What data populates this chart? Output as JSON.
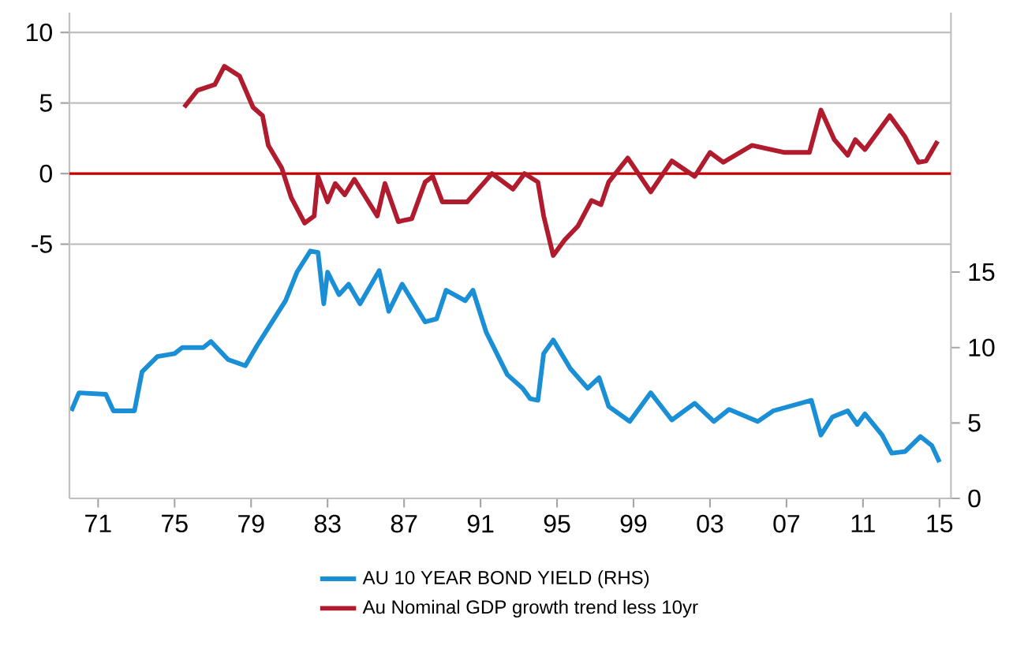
{
  "chart_data": {
    "type": "line",
    "xlim": [
      1969.5,
      2015.6
    ],
    "ylim": [
      -23,
      11.4
    ],
    "y2lim": [
      0,
      32.2
    ],
    "xticks": [
      {
        "value": 1971,
        "label": "71"
      },
      {
        "value": 1975,
        "label": "75"
      },
      {
        "value": 1979,
        "label": "79"
      },
      {
        "value": 1983,
        "label": "83"
      },
      {
        "value": 1987,
        "label": "87"
      },
      {
        "value": 1991,
        "label": "91"
      },
      {
        "value": 1995,
        "label": "95"
      },
      {
        "value": 1999,
        "label": "99"
      },
      {
        "value": 2003,
        "label": "03"
      },
      {
        "value": 2007,
        "label": "07"
      },
      {
        "value": 2011,
        "label": "11"
      },
      {
        "value": 2015,
        "label": "15"
      }
    ],
    "yticks": [
      -5,
      0,
      5,
      10
    ],
    "y2ticks": [
      0,
      5,
      10,
      15
    ],
    "grid": "y",
    "legend": "bottom",
    "marker": "none",
    "line_style": "solid",
    "ref_lines": [
      {
        "axis": "y",
        "value": 0,
        "color": "#c00000"
      }
    ],
    "series": [
      {
        "name": "AU 10 YEAR BOND YIELD (RHS)",
        "color": "#1a8fd6",
        "axis": "y2",
        "x": [
          1969.6,
          1970.0,
          1971.4,
          1971.8,
          1972.9,
          1973.3,
          1974.1,
          1975.0,
          1975.4,
          1976.5,
          1976.9,
          1977.8,
          1978.7,
          1979.3,
          1980.1,
          1980.8,
          1981.4,
          1982.1,
          1982.5,
          1982.8,
          1983.0,
          1983.6,
          1984.1,
          1984.7,
          1985.7,
          1986.2,
          1986.9,
          1988.1,
          1988.7,
          1989.2,
          1990.2,
          1990.6,
          1991.3,
          1992.4,
          1993.2,
          1993.6,
          1994.0,
          1994.3,
          1994.8,
          1995.7,
          1996.6,
          1997.2,
          1997.7,
          1998.8,
          1999.9,
          2001.0,
          2002.2,
          2003.2,
          2004.0,
          2005.5,
          2006.3,
          2008.3,
          2008.8,
          2009.4,
          2010.2,
          2010.7,
          2011.1,
          2012.0,
          2012.5,
          2013.2,
          2014.0,
          2014.6,
          2015.0
        ],
        "values": [
          5.8,
          7.0,
          6.9,
          5.8,
          5.8,
          8.4,
          9.4,
          9.6,
          10.0,
          10.0,
          10.4,
          9.2,
          8.8,
          10.1,
          11.7,
          13.1,
          15.0,
          16.4,
          16.3,
          12.9,
          15.0,
          13.5,
          14.2,
          12.9,
          15.1,
          12.4,
          14.2,
          11.7,
          11.9,
          13.8,
          13.1,
          13.8,
          11.0,
          8.2,
          7.3,
          6.6,
          6.5,
          9.6,
          10.5,
          8.6,
          7.3,
          8.0,
          6.1,
          5.1,
          7.0,
          5.2,
          6.3,
          5.1,
          5.9,
          5.1,
          5.8,
          6.5,
          4.2,
          5.4,
          5.8,
          4.9,
          5.6,
          4.2,
          3.0,
          3.1,
          4.1,
          3.5,
          2.4
        ]
      },
      {
        "name": "Au Nominal GDP growth trend less 10yr",
        "color": "#b01c2e",
        "x": [
          1975.5,
          1976.2,
          1977.1,
          1977.6,
          1978.4,
          1979.1,
          1979.6,
          1979.9,
          1980.6,
          1981.1,
          1981.8,
          1982.3,
          1982.5,
          1983.0,
          1983.4,
          1983.9,
          1984.4,
          1985.6,
          1986.0,
          1986.7,
          1987.4,
          1988.1,
          1988.5,
          1989.0,
          1990.3,
          1991.6,
          1992.7,
          1993.3,
          1994.0,
          1994.3,
          1994.8,
          1995.4,
          1996.1,
          1996.8,
          1997.3,
          1997.7,
          1998.7,
          1999.9,
          2001.0,
          2002.2,
          2003.0,
          2003.7,
          2005.2,
          2006.9,
          2008.2,
          2008.8,
          2009.5,
          2010.2,
          2010.6,
          2011.1,
          2012.4,
          2013.2,
          2013.9,
          2014.3,
          2014.9
        ],
        "values": [
          4.7,
          5.9,
          6.3,
          7.6,
          6.9,
          4.7,
          4.1,
          2.0,
          0.4,
          -1.7,
          -3.5,
          -3.0,
          -0.2,
          -2.0,
          -0.7,
          -1.5,
          -0.4,
          -3.0,
          -0.7,
          -3.4,
          -3.2,
          -0.6,
          -0.2,
          -2.0,
          -2.0,
          0.0,
          -1.1,
          0.0,
          -0.6,
          -3.0,
          -5.8,
          -4.7,
          -3.7,
          -1.9,
          -2.2,
          -0.6,
          1.1,
          -1.3,
          0.9,
          -0.2,
          1.5,
          0.8,
          2.0,
          1.5,
          1.5,
          4.5,
          2.4,
          1.3,
          2.4,
          1.7,
          4.1,
          2.6,
          0.8,
          0.9,
          2.3
        ]
      }
    ]
  }
}
